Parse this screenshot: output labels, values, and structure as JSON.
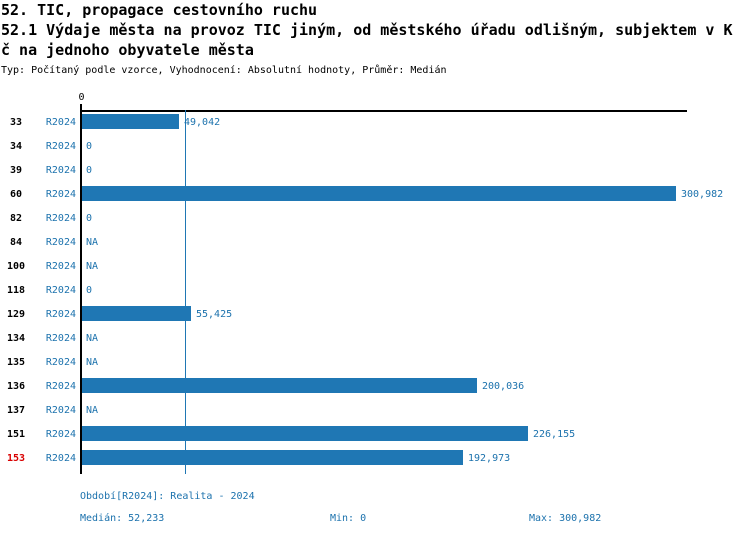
{
  "header": {
    "title_line1": "52. TIC, propagace cestovního ruchu",
    "title_line2": "52.1 Výdaje města na provoz TIC jiným, od městského úřadu odlišným, subjektem v K",
    "title_line3": "č na jednoho obyvatele města",
    "subtitle": "Typ: Počítaný podle vzorce, Vyhodnocení: Absolutní hodnoty, Průměr: Medián"
  },
  "chart_data": {
    "type": "bar",
    "orientation": "horizontal",
    "axis_zero_label": "0",
    "series_label": "R2024",
    "categories": [
      "33",
      "34",
      "39",
      "60",
      "82",
      "84",
      "100",
      "118",
      "129",
      "134",
      "135",
      "136",
      "137",
      "151",
      "153"
    ],
    "values": [
      49042,
      0,
      0,
      300982,
      0,
      null,
      null,
      0,
      55425,
      null,
      null,
      200036,
      null,
      226155,
      192973
    ],
    "value_labels": [
      "49,042",
      "0",
      "0",
      "300,982",
      "0",
      "NA",
      "NA",
      "0",
      "55,425",
      "NA",
      "NA",
      "200,036",
      "NA",
      "226,155",
      "192,973"
    ],
    "highlighted_category": "153",
    "median": 52233,
    "xlim": [
      0,
      300982
    ],
    "grid": false,
    "legend": false
  },
  "footer": {
    "period": "Období[R2024]: Realita - 2024",
    "median": "Medián: 52,233",
    "min": "Min: 0",
    "max": "Max: 300,982"
  },
  "colors": {
    "bar": "#1f77b4",
    "blue_text": "#1c72ad",
    "highlight": "#d90000",
    "axis": "#000000"
  }
}
